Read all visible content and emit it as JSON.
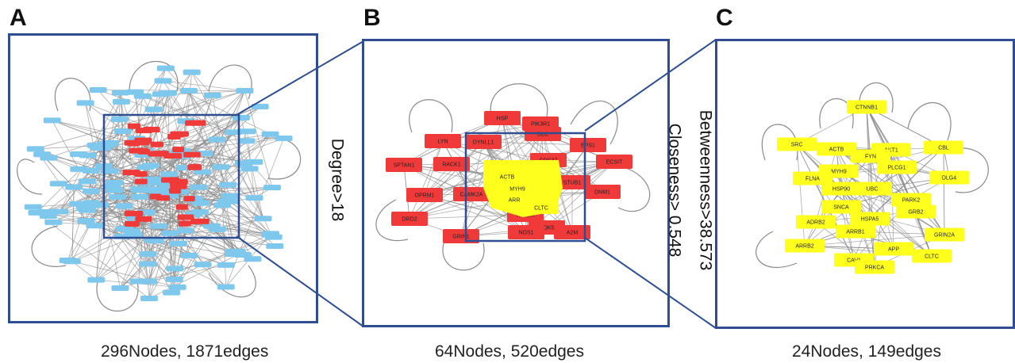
{
  "panels": [
    {
      "letter": "A",
      "caption": "296Nodes, 1871edges"
    },
    {
      "letter": "B",
      "caption": "64Nodes, 520edges"
    },
    {
      "letter": "C",
      "caption": "24Nodes, 149edges"
    }
  ],
  "filters": {
    "degree": "Degree>18",
    "betweenness": "Betweenness>38.573",
    "closeness": "Closeness> 0.548"
  },
  "colors": {
    "frame": "#2f4e91",
    "blue_node": "#7ec8ee",
    "red_node": "#f03a3a",
    "yellow_node": "#ffff1e",
    "edge": "#8a8a8a"
  },
  "network_b": {
    "red_nodes": [
      "HSP",
      "PIK3R1",
      "LYN",
      "DYNLL1",
      "DLC",
      "EPS1",
      "SPTAN1",
      "RACK1",
      "CDC37",
      "ECSIT",
      "OPRM1",
      "CAMK2A",
      "MDM2",
      "STUB1",
      "DNM1",
      "DRD2",
      "HTR2A",
      "CDK5",
      "A2M",
      "NOS1",
      "GRIN1"
    ],
    "yellow_nodes": [
      "ACTB",
      "MYH9",
      "ARR",
      "CLTC"
    ]
  },
  "network_c": {
    "yellow_nodes": [
      "CTNNB1",
      "SRC",
      "ACTB",
      "AKT1",
      "CBL",
      "FYN",
      "MYH9",
      "PLCG1",
      "FLNA",
      "HSP90",
      "UBC",
      "DLG4",
      "PARK2",
      "SNCA",
      "GRB2",
      "ADRB2",
      "HSPA5",
      "ARRB1",
      "GRIN2A",
      "ARRB2",
      "CAV1",
      "APP",
      "CLTC",
      "PRKCA"
    ]
  }
}
